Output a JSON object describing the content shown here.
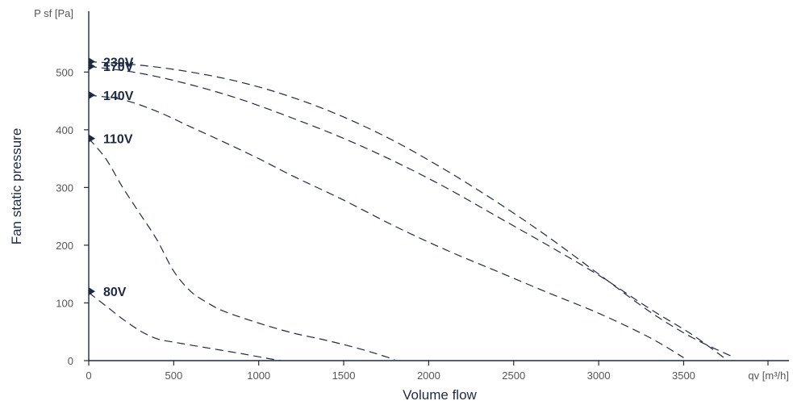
{
  "chart_data": {
    "type": "line",
    "ylabel": "Fan static pressure",
    "xlabel": "Volume flow",
    "y_unit": "P sf [Pa]",
    "x_unit": "qv [m³/h]",
    "xlim": [
      0,
      4000
    ],
    "ylim": [
      0,
      600
    ],
    "x_ticks": [
      0,
      500,
      1000,
      1500,
      2000,
      2500,
      3000,
      3500
    ],
    "y_ticks": [
      0,
      100,
      200,
      300,
      400,
      500
    ],
    "grid": false,
    "line_style": "dashed",
    "line_color": "#1c2b44",
    "series": [
      {
        "name": "230V",
        "label_y": 518,
        "points": [
          [
            0,
            518
          ],
          [
            300,
            512
          ],
          [
            600,
            500
          ],
          [
            900,
            482
          ],
          [
            1200,
            456
          ],
          [
            1500,
            422
          ],
          [
            1800,
            380
          ],
          [
            2100,
            330
          ],
          [
            2400,
            275
          ],
          [
            2700,
            215
          ],
          [
            3000,
            150
          ],
          [
            3300,
            85
          ],
          [
            3550,
            40
          ],
          [
            3800,
            5
          ]
        ]
      },
      {
        "name": "170V",
        "label_y": 510,
        "points": [
          [
            0,
            510
          ],
          [
            300,
            498
          ],
          [
            600,
            478
          ],
          [
            900,
            452
          ],
          [
            1200,
            420
          ],
          [
            1500,
            385
          ],
          [
            1800,
            345
          ],
          [
            2100,
            300
          ],
          [
            2400,
            250
          ],
          [
            2700,
            200
          ],
          [
            3000,
            148
          ],
          [
            3300,
            90
          ],
          [
            3550,
            45
          ],
          [
            3760,
            0
          ]
        ]
      },
      {
        "name": "140V",
        "label_y": 460,
        "points": [
          [
            0,
            460
          ],
          [
            200,
            452
          ],
          [
            400,
            432
          ],
          [
            600,
            405
          ],
          [
            800,
            378
          ],
          [
            1000,
            350
          ],
          [
            1200,
            320
          ],
          [
            1500,
            278
          ],
          [
            1800,
            233
          ],
          [
            2100,
            192
          ],
          [
            2400,
            155
          ],
          [
            2700,
            118
          ],
          [
            3000,
            82
          ],
          [
            3300,
            40
          ],
          [
            3500,
            5
          ]
        ]
      },
      {
        "name": "110V",
        "label_y": 385,
        "points": [
          [
            0,
            385
          ],
          [
            100,
            350
          ],
          [
            200,
            300
          ],
          [
            300,
            255
          ],
          [
            400,
            210
          ],
          [
            500,
            155
          ],
          [
            600,
            120
          ],
          [
            700,
            100
          ],
          [
            800,
            85
          ],
          [
            1000,
            65
          ],
          [
            1200,
            48
          ],
          [
            1400,
            35
          ],
          [
            1600,
            20
          ],
          [
            1800,
            2
          ]
        ]
      },
      {
        "name": "80V",
        "label_y": 120,
        "points": [
          [
            0,
            118
          ],
          [
            100,
            95
          ],
          [
            200,
            72
          ],
          [
            300,
            52
          ],
          [
            400,
            38
          ],
          [
            500,
            32
          ],
          [
            700,
            22
          ],
          [
            900,
            12
          ],
          [
            1050,
            4
          ],
          [
            1130,
            0
          ]
        ]
      }
    ]
  }
}
